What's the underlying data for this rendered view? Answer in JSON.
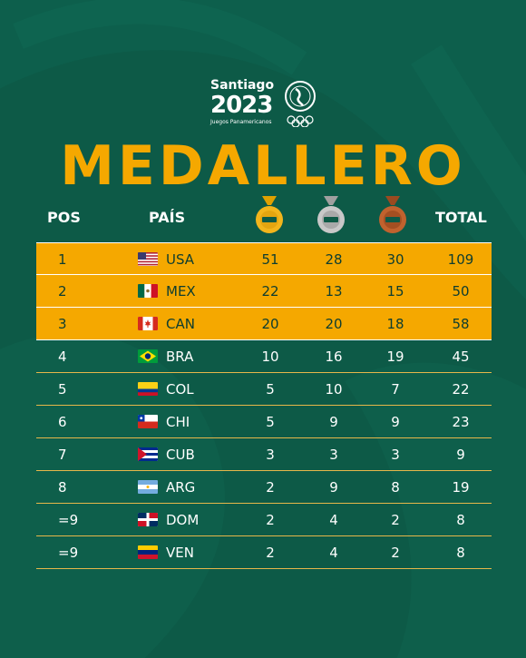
{
  "brand": {
    "city": "Santiago",
    "year": "2023",
    "subtitle": "Juegos Panamericanos"
  },
  "title": "MEDALLERO",
  "headers": {
    "pos": "POS",
    "country": "PAÍS",
    "gold_icon": "gold-medal-icon",
    "silver_icon": "silver-medal-icon",
    "bronze_icon": "bronze-medal-icon",
    "total": "TOTAL"
  },
  "colors": {
    "background": "#0d5a47",
    "accent": "#f5a800",
    "gold": "#f2b51c",
    "silver": "#b8b8b8",
    "bronze": "#b85a2a"
  },
  "rows": [
    {
      "pos": "1",
      "flag": "usa-flag-icon",
      "code": "USA",
      "gold": "51",
      "silver": "28",
      "bronze": "30",
      "total": "109"
    },
    {
      "pos": "2",
      "flag": "mexico-flag-icon",
      "code": "MEX",
      "gold": "22",
      "silver": "13",
      "bronze": "15",
      "total": "50"
    },
    {
      "pos": "3",
      "flag": "canada-flag-icon",
      "code": "CAN",
      "gold": "20",
      "silver": "20",
      "bronze": "18",
      "total": "58"
    },
    {
      "pos": "4",
      "flag": "brazil-flag-icon",
      "code": "BRA",
      "gold": "10",
      "silver": "16",
      "bronze": "19",
      "total": "45"
    },
    {
      "pos": "5",
      "flag": "colombia-flag-icon",
      "code": "COL",
      "gold": "5",
      "silver": "10",
      "bronze": "7",
      "total": "22"
    },
    {
      "pos": "6",
      "flag": "chile-flag-icon",
      "code": "CHI",
      "gold": "5",
      "silver": "9",
      "bronze": "9",
      "total": "23"
    },
    {
      "pos": "7",
      "flag": "cuba-flag-icon",
      "code": "CUB",
      "gold": "3",
      "silver": "3",
      "bronze": "3",
      "total": "9"
    },
    {
      "pos": "8",
      "flag": "argentina-flag-icon",
      "code": "ARG",
      "gold": "2",
      "silver": "9",
      "bronze": "8",
      "total": "19"
    },
    {
      "pos": "=9",
      "flag": "dominican-republic-flag-icon",
      "code": "DOM",
      "gold": "2",
      "silver": "4",
      "bronze": "2",
      "total": "8"
    },
    {
      "pos": "=9",
      "flag": "venezuela-flag-icon",
      "code": "VEN",
      "gold": "2",
      "silver": "4",
      "bronze": "2",
      "total": "8"
    }
  ]
}
